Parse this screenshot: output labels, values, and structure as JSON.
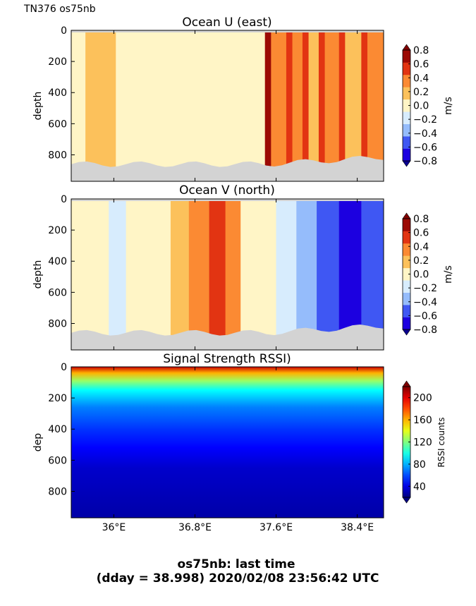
{
  "figure": {
    "header": "TN376 os75nb",
    "footer_line1": "os75nb: last time",
    "footer_line2": "(dday = 38.998) 2020/02/08 23:56:42 UTC"
  },
  "colors": {
    "bad_data_gray": "#d3d3d3",
    "diverging_scale": [
      "#1c00e0",
      "#3f57f3",
      "#95bcfb",
      "#d7ecfd",
      "#fff5c6",
      "#fcc15b",
      "#fb8a33",
      "#e23412",
      "#9c0a04"
    ],
    "jet_stops": [
      "#00007f",
      "#0000ff",
      "#007fff",
      "#00ffff",
      "#7fff7f",
      "#ffff00",
      "#ff7f00",
      "#ff0000",
      "#7f0000"
    ]
  },
  "x_axis": {
    "ticks": [
      36.0,
      36.8,
      37.6,
      38.4
    ],
    "tick_labels": [
      "36°E",
      "36.8°E",
      "37.6°E",
      "38.4°E"
    ],
    "range": [
      35.58,
      38.66
    ]
  },
  "chart_data": [
    {
      "type": "heatmap",
      "title": "Ocean U (east)",
      "ylabel": "depth",
      "y_ticks": [
        0,
        200,
        400,
        600,
        800
      ],
      "ylim": [
        970,
        0
      ],
      "xlim": [
        35.58,
        38.66
      ],
      "colorbar": {
        "label": "m/s",
        "ticks": [
          0.8,
          0.6,
          0.4,
          0.2,
          0.0,
          -0.2,
          -0.4,
          -0.6,
          -0.8
        ],
        "tick_labels": [
          "0.8",
          "0.6",
          "0.4",
          "0.2",
          "0.0",
          "−0.2",
          "−0.4",
          "−0.6",
          "−0.8"
        ],
        "range": [
          -0.8,
          0.8
        ]
      },
      "field_segments": [
        {
          "x0": 35.58,
          "x1": 35.72,
          "value": 0.05
        },
        {
          "x0": 35.72,
          "x1": 36.02,
          "value": 0.22
        },
        {
          "x0": 36.02,
          "x1": 36.3,
          "value": 0.05
        },
        {
          "x0": 36.3,
          "x1": 36.58,
          "value": -0.05
        },
        {
          "x0": 36.58,
          "x1": 36.85,
          "value": 0.06
        },
        {
          "x0": 36.85,
          "x1": 37.2,
          "value": -0.06
        },
        {
          "x0": 37.2,
          "x1": 37.49,
          "value": 0.05
        },
        {
          "x0": 37.49,
          "x1": 37.55,
          "value": 0.65
        },
        {
          "x0": 37.55,
          "x1": 37.7,
          "value": 0.42
        },
        {
          "x0": 37.7,
          "x1": 37.76,
          "value": 0.62
        },
        {
          "x0": 37.76,
          "x1": 37.86,
          "value": 0.35
        },
        {
          "x0": 37.86,
          "x1": 37.92,
          "value": 0.58
        },
        {
          "x0": 37.92,
          "x1": 38.02,
          "value": 0.26
        },
        {
          "x0": 38.02,
          "x1": 38.08,
          "value": 0.55
        },
        {
          "x0": 38.08,
          "x1": 38.22,
          "value": 0.3
        },
        {
          "x0": 38.22,
          "x1": 38.28,
          "value": 0.5
        },
        {
          "x0": 38.28,
          "x1": 38.44,
          "value": 0.25
        },
        {
          "x0": 38.44,
          "x1": 38.5,
          "value": 0.45
        },
        {
          "x0": 38.5,
          "x1": 38.66,
          "value": 0.28
        }
      ]
    },
    {
      "type": "heatmap",
      "title": "Ocean V (north)",
      "ylabel": "depth",
      "y_ticks": [
        0,
        200,
        400,
        600,
        800
      ],
      "ylim": [
        970,
        0
      ],
      "xlim": [
        35.58,
        38.66
      ],
      "colorbar": {
        "label": "m/s",
        "ticks": [
          0.8,
          0.6,
          0.4,
          0.2,
          0.0,
          -0.2,
          -0.4,
          -0.6,
          -0.8
        ],
        "tick_labels": [
          "0.8",
          "0.6",
          "0.4",
          "0.2",
          "0.0",
          "−0.2",
          "−0.4",
          "−0.6",
          "−0.8"
        ],
        "range": [
          -0.8,
          0.8
        ]
      },
      "field_segments": [
        {
          "x0": 35.58,
          "x1": 35.95,
          "value": -0.06
        },
        {
          "x0": 35.95,
          "x1": 36.12,
          "value": -0.25
        },
        {
          "x0": 36.12,
          "x1": 36.4,
          "value": -0.06
        },
        {
          "x0": 36.4,
          "x1": 36.56,
          "value": 0.06
        },
        {
          "x0": 36.56,
          "x1": 36.74,
          "value": 0.25
        },
        {
          "x0": 36.74,
          "x1": 36.94,
          "value": 0.42
        },
        {
          "x0": 36.94,
          "x1": 37.1,
          "value": 0.62
        },
        {
          "x0": 37.1,
          "x1": 37.25,
          "value": 0.42
        },
        {
          "x0": 37.25,
          "x1": 37.43,
          "value": 0.06
        },
        {
          "x0": 37.43,
          "x1": 37.6,
          "value": -0.06
        },
        {
          "x0": 37.6,
          "x1": 37.8,
          "value": -0.25
        },
        {
          "x0": 37.8,
          "x1": 38.0,
          "value": -0.42
        },
        {
          "x0": 38.0,
          "x1": 38.22,
          "value": -0.55
        },
        {
          "x0": 38.22,
          "x1": 38.44,
          "value": -0.7
        },
        {
          "x0": 38.44,
          "x1": 38.66,
          "value": -0.55
        }
      ]
    },
    {
      "type": "heatmap",
      "title": "Signal Strength RSSI)",
      "ylabel": "dep",
      "y_ticks": [
        0,
        200,
        400,
        600,
        800
      ],
      "ylim": [
        970,
        0
      ],
      "xlim": [
        35.58,
        38.66
      ],
      "colorbar": {
        "label": "RSSI counts",
        "ticks": [
          200,
          160,
          120,
          80,
          40
        ],
        "tick_labels": [
          "200",
          "160",
          "120",
          "80",
          "40"
        ],
        "range": [
          20,
          220
        ]
      },
      "depth_profile": [
        {
          "depth": 0,
          "value": 205
        },
        {
          "depth": 40,
          "value": 160
        },
        {
          "depth": 90,
          "value": 125
        },
        {
          "depth": 150,
          "value": 95
        },
        {
          "depth": 260,
          "value": 70
        },
        {
          "depth": 400,
          "value": 55
        },
        {
          "depth": 520,
          "value": 45
        },
        {
          "depth": 650,
          "value": 35
        },
        {
          "depth": 970,
          "value": 28
        }
      ]
    }
  ]
}
